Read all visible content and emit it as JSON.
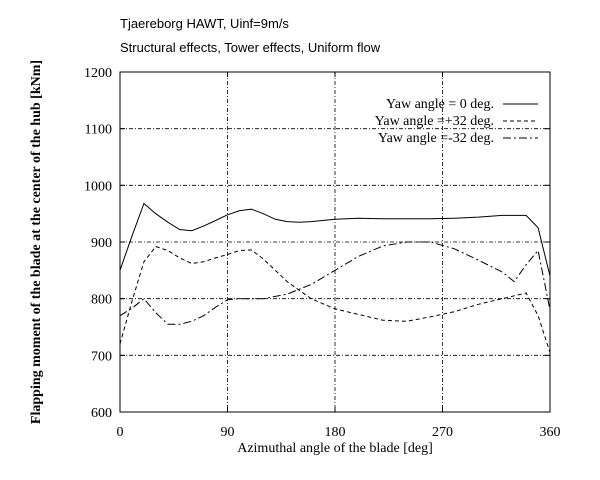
{
  "chart_data": {
    "type": "line",
    "title": "Tjaereborg HAWT, Uinf=9m/s",
    "subtitle": "Structural effects, Tower effects, Uniform flow",
    "xlabel": "Azimuthal angle of the blade [deg]",
    "ylabel": "Flapping moment of the blade at the center of the hub [kNm]",
    "xlim": [
      0,
      360
    ],
    "ylim": [
      600,
      1200
    ],
    "xticks": [
      0,
      90,
      180,
      270,
      360
    ],
    "yticks": [
      600,
      700,
      800,
      900,
      1000,
      1100,
      1200
    ],
    "xtick_labels": [
      "0",
      "90",
      "180",
      "270",
      "360"
    ],
    "ytick_labels": [
      "600",
      "700",
      "800",
      "900",
      "1000",
      "1100",
      "1200"
    ],
    "grid": true,
    "legend_position": "top-right",
    "series": [
      {
        "name": "Yaw angle =  0 deg.",
        "dash": "solid",
        "x": [
          0,
          10,
          20,
          30,
          40,
          50,
          60,
          70,
          80,
          90,
          100,
          110,
          120,
          130,
          140,
          150,
          160,
          180,
          200,
          220,
          240,
          260,
          280,
          300,
          320,
          340,
          350,
          360
        ],
        "y": [
          850,
          910,
          968,
          950,
          935,
          922,
          920,
          928,
          938,
          948,
          955,
          958,
          950,
          940,
          936,
          935,
          936,
          940,
          942,
          941,
          941,
          941,
          942,
          944,
          947,
          947,
          925,
          840
        ]
      },
      {
        "name": "Yaw angle =+32 deg.",
        "dash": "dash",
        "x": [
          0,
          10,
          20,
          30,
          40,
          50,
          60,
          70,
          80,
          90,
          100,
          110,
          120,
          130,
          140,
          160,
          180,
          200,
          220,
          240,
          260,
          280,
          300,
          320,
          340,
          350,
          360
        ],
        "y": [
          720,
          795,
          865,
          892,
          885,
          872,
          862,
          865,
          872,
          878,
          885,
          886,
          870,
          850,
          830,
          800,
          782,
          772,
          762,
          760,
          768,
          777,
          790,
          800,
          810,
          770,
          705
        ]
      },
      {
        "name": "Yaw angle =-32 deg.",
        "dash": "dashdot",
        "x": [
          0,
          10,
          20,
          30,
          40,
          50,
          60,
          70,
          80,
          90,
          100,
          120,
          140,
          160,
          180,
          200,
          220,
          240,
          260,
          280,
          300,
          320,
          330,
          340,
          350,
          360
        ],
        "y": [
          770,
          783,
          800,
          775,
          755,
          755,
          760,
          770,
          785,
          798,
          800,
          800,
          808,
          825,
          850,
          875,
          893,
          900,
          900,
          888,
          868,
          847,
          830,
          860,
          885,
          780
        ]
      }
    ]
  }
}
